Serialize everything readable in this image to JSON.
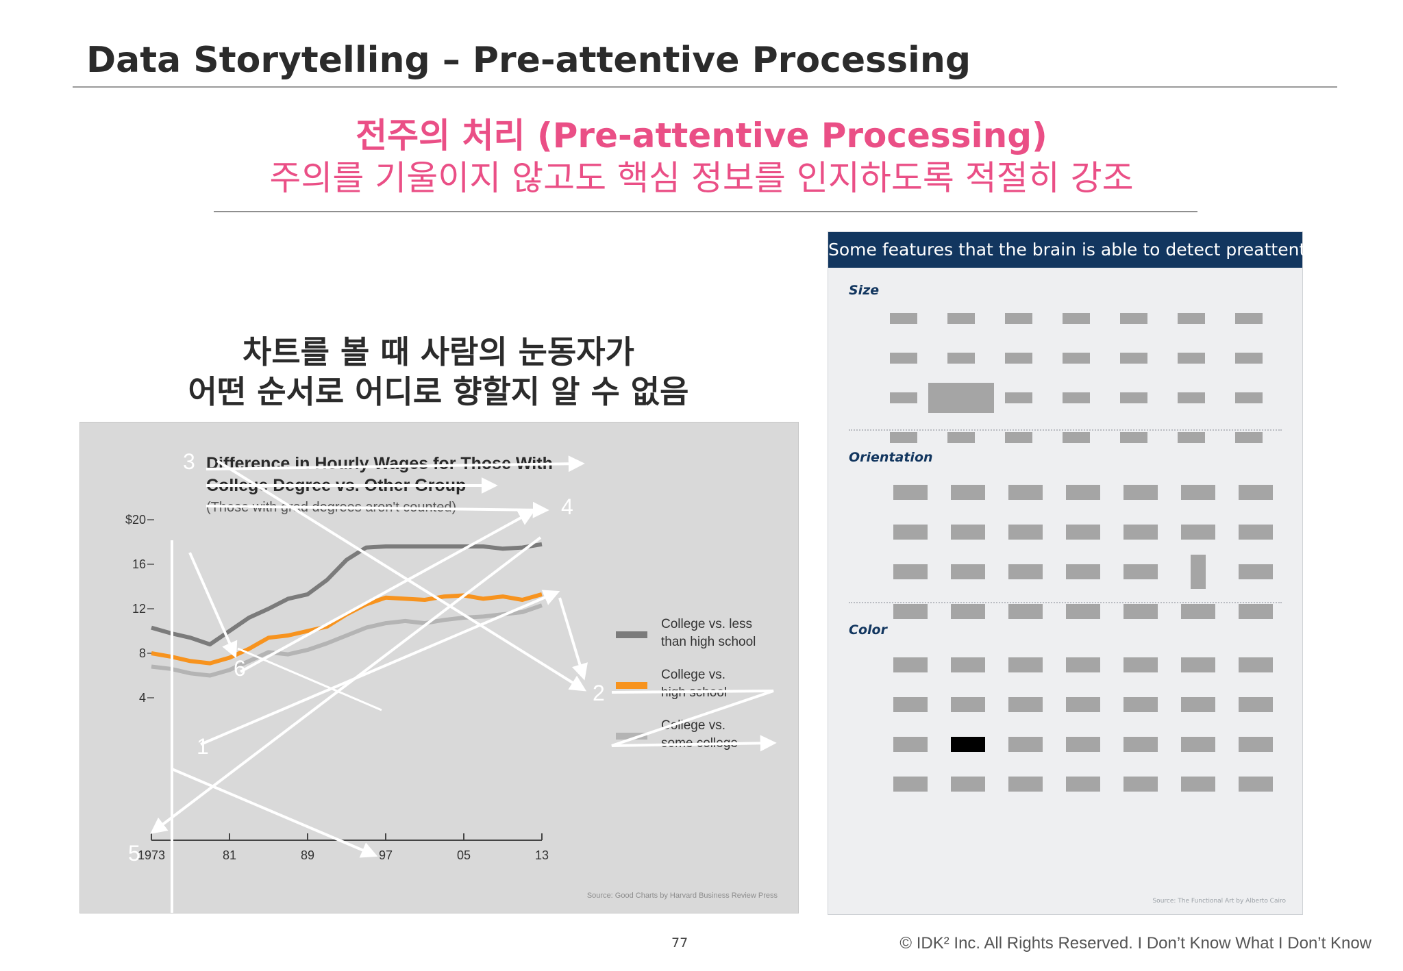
{
  "slide": {
    "title": "Data Storytelling – Pre-attentive Processing",
    "heading_line1": "전주의 처리 (Pre-attentive Processing)",
    "heading_line2": "주의를 기울이지 않고도 핵심 정보를 인지하도록 적절히 강조",
    "note_line1": "차트를 볼 때 사람의 눈동자가",
    "note_line2": "어떤 순서로 어디로 향할지 알 수 없음",
    "page_number": "77",
    "copyright": "© IDK² Inc. All Rights Reserved.  I Don’t Know What I Don’t Know"
  },
  "chart_data": {
    "type": "line",
    "title": "Difference in Hourly Wages for Those With College Degree vs. Other Group",
    "subtitle": "(Those with grad degrees aren't counted)",
    "x": [
      1973,
      1975,
      1977,
      1979,
      1981,
      1983,
      1985,
      1987,
      1989,
      1991,
      1993,
      1995,
      1997,
      1999,
      2001,
      2003,
      2005,
      2007,
      2009,
      2011,
      2013
    ],
    "x_tick_labels": [
      "1973",
      "81",
      "89",
      "97",
      "05",
      "13"
    ],
    "y_tick_labels": [
      "$20",
      "16",
      "12",
      "8",
      "4"
    ],
    "ylim": [
      0,
      21
    ],
    "legend_position": "right",
    "grid": false,
    "series": [
      {
        "name": "College vs. less than high school",
        "color": "#7b7b7b",
        "values": [
          10.3,
          9.8,
          9.4,
          8.8,
          10.0,
          11.2,
          12.0,
          12.9,
          13.3,
          14.6,
          16.4,
          17.5,
          17.6,
          17.6,
          17.6,
          17.6,
          17.6,
          17.6,
          17.4,
          17.5,
          17.8
        ]
      },
      {
        "name": "College vs. high school",
        "color": "#f7931e",
        "values": [
          8.0,
          7.7,
          7.3,
          7.1,
          7.6,
          8.4,
          9.4,
          9.6,
          10.0,
          10.4,
          11.5,
          12.4,
          13.0,
          12.9,
          12.8,
          13.1,
          13.2,
          12.9,
          13.1,
          12.8,
          13.3
        ]
      },
      {
        "name": "College vs. some college",
        "color": "#b4b4b4",
        "values": [
          6.8,
          6.6,
          6.2,
          6.0,
          6.5,
          7.3,
          8.1,
          7.9,
          8.3,
          8.9,
          9.6,
          10.3,
          10.7,
          10.9,
          10.7,
          11.0,
          11.2,
          11.3,
          11.5,
          11.7,
          12.3
        ]
      }
    ],
    "annotations": [
      "1",
      "2",
      "3",
      "4",
      "5",
      "6"
    ],
    "source": "Source: Good Charts by Harvard Business Review Press"
  },
  "features_panel": {
    "header": "Some features that the brain is able to detect preattentively",
    "sections": [
      {
        "label": "Size",
        "rows": 4,
        "cols": 7,
        "highlight": {
          "row": 2,
          "col": 1,
          "kind": "size"
        }
      },
      {
        "label": "Orientation",
        "rows": 4,
        "cols": 7,
        "highlight": {
          "row": 2,
          "col": 5,
          "kind": "orientation"
        }
      },
      {
        "label": "Color",
        "rows": 4,
        "cols": 7,
        "highlight": {
          "row": 2,
          "col": 1,
          "kind": "color",
          "color": "#000000"
        }
      }
    ],
    "cell_color": "#a5a5a5",
    "source": "Source: The Functional Art by Alberto Cairo"
  }
}
